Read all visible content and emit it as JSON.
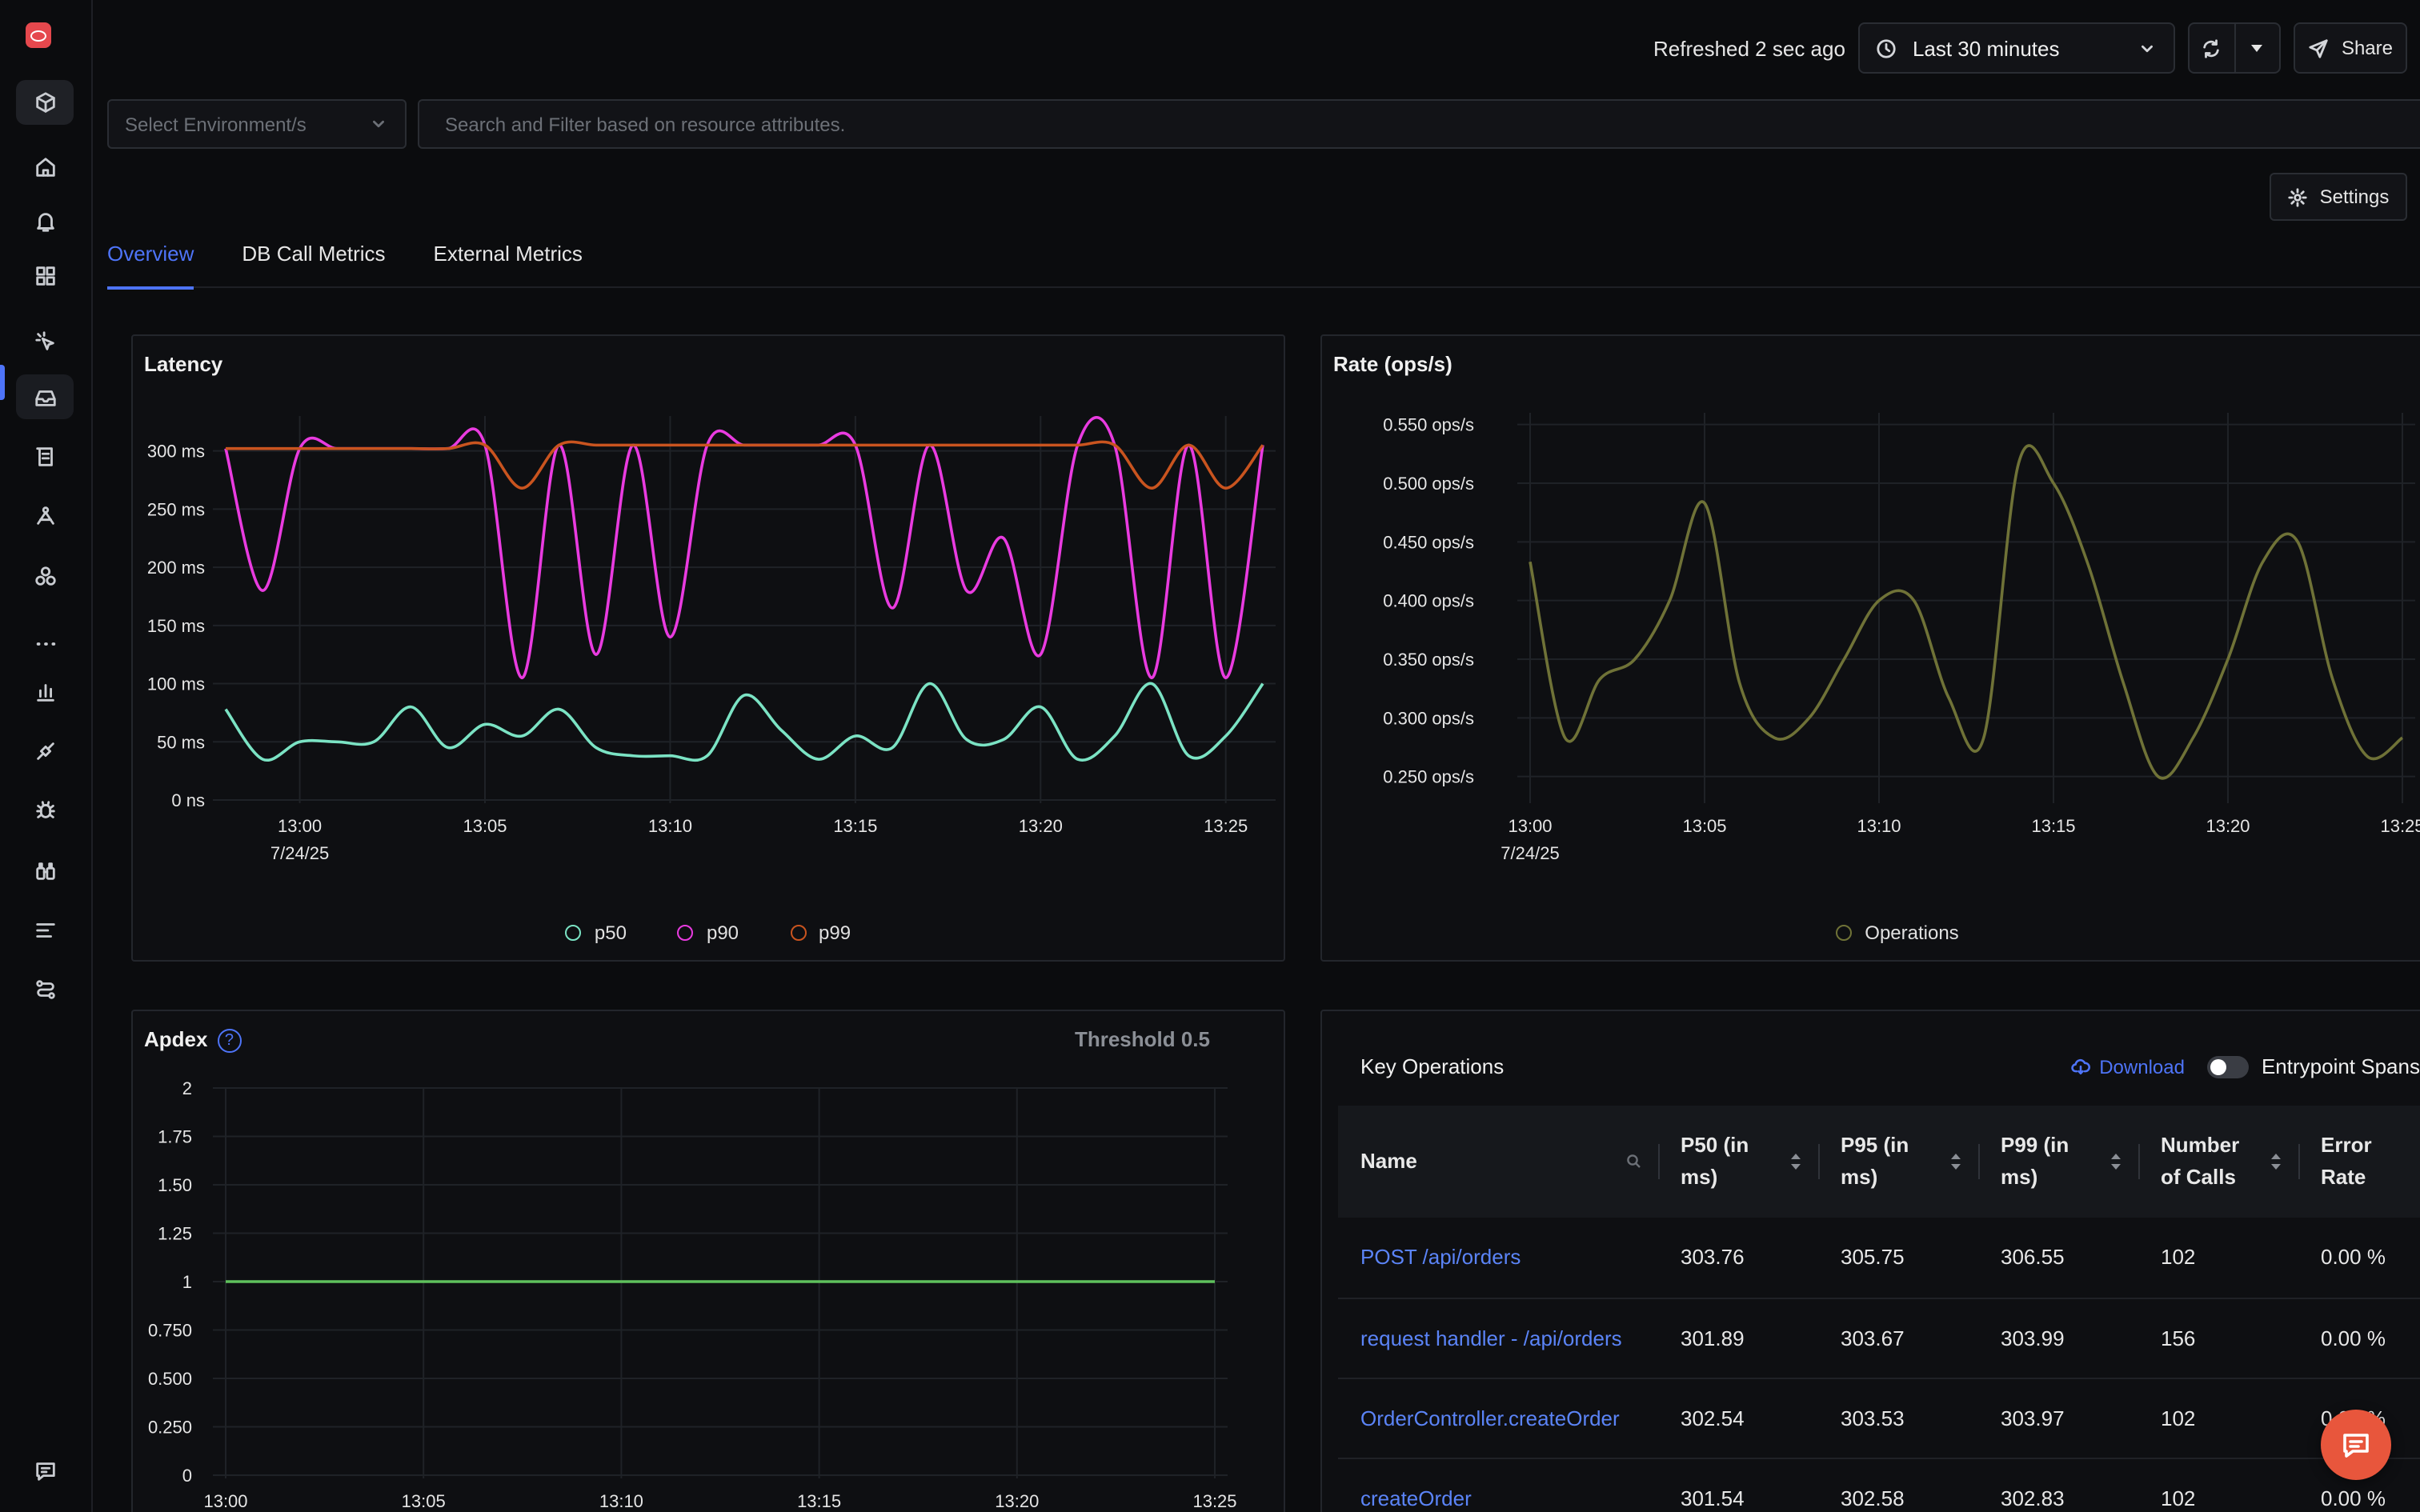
{
  "topbar": {
    "refreshed": "Refreshed 2 sec ago",
    "time_range": "Last 30 minutes",
    "share_label": "Share"
  },
  "filters": {
    "environment_placeholder": "Select Environment/s",
    "search_placeholder": "Search and Filter based on resource attributes."
  },
  "settings_label": "Settings",
  "tabs": [
    {
      "label": "Overview",
      "active": true
    },
    {
      "label": "DB Call Metrics",
      "active": false
    },
    {
      "label": "External Metrics",
      "active": false
    }
  ],
  "sidebar": {
    "icons": [
      "logo-icon",
      "get-started-icon",
      "home-icon",
      "alerts-icon",
      "dashboards-icon",
      "exceptions-icon",
      "services-icon",
      "logs-icon",
      "traces-icon",
      "integrations-icon",
      "more-icon",
      "metrics-icon",
      "pipelines-icon",
      "debug-icon",
      "explorer-icon",
      "saved-views-icon",
      "messaging-queues-icon",
      "feedback-icon",
      "settings-icon"
    ]
  },
  "colors": {
    "accent": "#4e74f8",
    "p50": "#7be3c4",
    "p90": "#e93be0",
    "p99": "#c9541f",
    "operations": "#6f7237",
    "apdex": "#5fc15c",
    "fab": "#e8563c"
  },
  "chart_data": [
    {
      "id": "latency",
      "type": "line",
      "title": "Latency",
      "x": [
        "12:58",
        "12:59",
        "13:00",
        "13:01",
        "13:02",
        "13:03",
        "13:04",
        "13:05",
        "13:06",
        "13:07",
        "13:08",
        "13:09",
        "13:10",
        "13:11",
        "13:12",
        "13:13",
        "13:14",
        "13:15",
        "13:16",
        "13:17",
        "13:18",
        "13:19",
        "13:20",
        "13:21",
        "13:22",
        "13:23",
        "13:24",
        "13:25",
        "13:26"
      ],
      "x_ticks": [
        {
          "label": "13:00",
          "sub": "7/24/25",
          "x": 2
        },
        {
          "label": "13:05",
          "x": 7
        },
        {
          "label": "13:10",
          "x": 12
        },
        {
          "label": "13:15",
          "x": 17
        },
        {
          "label": "13:20",
          "x": 22
        },
        {
          "label": "13:25",
          "x": 27
        }
      ],
      "y_ticks": [
        "0 ns",
        "50 ms",
        "100 ms",
        "150 ms",
        "200 ms",
        "250 ms",
        "300 ms"
      ],
      "ylim": [
        0,
        330
      ],
      "series": [
        {
          "name": "p50",
          "values": [
            78,
            35,
            50,
            50,
            50,
            80,
            45,
            65,
            55,
            78,
            45,
            38,
            38,
            38,
            90,
            60,
            35,
            55,
            45,
            100,
            52,
            52,
            80,
            35,
            55,
            100,
            38,
            55,
            100
          ]
        },
        {
          "name": "p90",
          "values": [
            302,
            180,
            302,
            302,
            302,
            302,
            302,
            305,
            105,
            305,
            125,
            305,
            140,
            305,
            305,
            305,
            305,
            305,
            165,
            305,
            180,
            225,
            125,
            305,
            305,
            105,
            305,
            105,
            305
          ]
        },
        {
          "name": "p99",
          "values": [
            302,
            302,
            302,
            302,
            302,
            302,
            302,
            305,
            268,
            305,
            305,
            305,
            305,
            305,
            305,
            305,
            305,
            305,
            305,
            305,
            305,
            305,
            305,
            305,
            305,
            268,
            305,
            268,
            305
          ]
        }
      ]
    },
    {
      "id": "rate",
      "type": "line",
      "title": "Rate (ops/s)",
      "x": [
        "13:00",
        "13:01",
        "13:02",
        "13:03",
        "13:04",
        "13:05",
        "13:06",
        "13:07",
        "13:08",
        "13:09",
        "13:10",
        "13:11",
        "13:12",
        "13:13",
        "13:14",
        "13:15",
        "13:16",
        "13:17",
        "13:18",
        "13:19",
        "13:20",
        "13:21",
        "13:22",
        "13:23",
        "13:24",
        "13:25"
      ],
      "x_ticks": [
        {
          "label": "13:00",
          "sub": "7/24/25",
          "x": 0
        },
        {
          "label": "13:05",
          "x": 5
        },
        {
          "label": "13:10",
          "x": 10
        },
        {
          "label": "13:15",
          "x": 15
        },
        {
          "label": "13:20",
          "x": 20
        },
        {
          "label": "13:25",
          "x": 25
        }
      ],
      "y_ticks": [
        "0.250 ops/s",
        "0.300 ops/s",
        "0.350 ops/s",
        "0.400 ops/s",
        "0.450 ops/s",
        "0.500 ops/s",
        "0.550 ops/s"
      ],
      "ylim": [
        0.23,
        0.56
      ],
      "series": [
        {
          "name": "Operations",
          "values": [
            0.433,
            0.283,
            0.333,
            0.35,
            0.4,
            0.483,
            0.33,
            0.283,
            0.3,
            0.35,
            0.4,
            0.4,
            0.317,
            0.283,
            0.517,
            0.5,
            0.43,
            0.33,
            0.25,
            0.283,
            0.35,
            0.433,
            0.45,
            0.333,
            0.267,
            0.283
          ]
        }
      ]
    },
    {
      "id": "apdex",
      "type": "line",
      "title": "Apdex",
      "threshold": "Threshold 0.5",
      "x": [
        "13:00",
        "13:01",
        "13:02",
        "13:03",
        "13:04",
        "13:05",
        "13:06",
        "13:07",
        "13:08",
        "13:09",
        "13:10",
        "13:11",
        "13:12",
        "13:13",
        "13:14",
        "13:15",
        "13:16",
        "13:17",
        "13:18",
        "13:19",
        "13:20",
        "13:21",
        "13:22",
        "13:23",
        "13:24",
        "13:25"
      ],
      "x_ticks": [
        {
          "label": "13:00",
          "sub": "7/24/25",
          "x": 0
        },
        {
          "label": "13:05",
          "x": 5
        },
        {
          "label": "13:10",
          "x": 10
        },
        {
          "label": "13:15",
          "x": 15
        },
        {
          "label": "13:20",
          "x": 20
        },
        {
          "label": "13:25",
          "x": 25
        }
      ],
      "y_ticks": [
        "0",
        "0.250",
        "0.500",
        "0.750",
        "1",
        "1.25",
        "1.50",
        "1.75",
        "2"
      ],
      "ylim": [
        0,
        2
      ],
      "series": [
        {
          "name": "apdex",
          "values": [
            1,
            1,
            1,
            1,
            1,
            1,
            1,
            1,
            1,
            1,
            1,
            1,
            1,
            1,
            1,
            1,
            1,
            1,
            1,
            1,
            1,
            1,
            1,
            1,
            1,
            1
          ]
        }
      ]
    }
  ],
  "key_operations": {
    "title": "Key Operations",
    "download": "Download",
    "entrypoint": "Entrypoint Spans",
    "columns": [
      {
        "l1": "Name",
        "l2": ""
      },
      {
        "l1": "P50 (in",
        "l2": "ms)"
      },
      {
        "l1": "P95 (in",
        "l2": "ms)"
      },
      {
        "l1": "P99 (in",
        "l2": "ms)"
      },
      {
        "l1": "Number",
        "l2": "of Calls"
      },
      {
        "l1": "Error",
        "l2": "Rate"
      }
    ],
    "rows": [
      [
        "POST /api/orders",
        "303.76",
        "305.75",
        "306.55",
        "102",
        "0.00 %"
      ],
      [
        "request handler - /api/orders",
        "301.89",
        "303.67",
        "303.99",
        "156",
        "0.00 %"
      ],
      [
        "OrderController.createOrder",
        "302.54",
        "303.53",
        "303.97",
        "102",
        "0.00 %"
      ],
      [
        "createOrder",
        "301.54",
        "302.58",
        "302.83",
        "102",
        "0.00 %"
      ]
    ]
  }
}
